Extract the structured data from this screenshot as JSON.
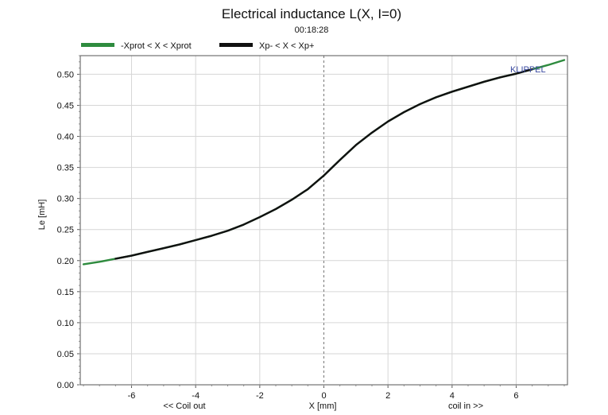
{
  "chart_data": {
    "type": "line",
    "title": "Electrical inductance L(X, I=0)",
    "subtitle": "00:18:28",
    "xlabel": "X [mm]",
    "xlabel_left": "<< Coil out",
    "xlabel_right": "coil in >>",
    "ylabel": "Le [mH]",
    "xlim": [
      -7.6,
      7.6
    ],
    "ylim": [
      0,
      0.53
    ],
    "xticks": [
      -6,
      -4,
      -2,
      0,
      2,
      4,
      6
    ],
    "xtick_labels": [
      "-6",
      "-4",
      "-2",
      "0",
      "2",
      "4",
      "6"
    ],
    "yticks": [
      0,
      0.05,
      0.1,
      0.15,
      0.2,
      0.25,
      0.3,
      0.35,
      0.4,
      0.45,
      0.5
    ],
    "ytick_labels": [
      "0.00",
      "0.05",
      "0.10",
      "0.15",
      "0.20",
      "0.25",
      "0.30",
      "0.35",
      "0.40",
      "0.45",
      "0.50"
    ],
    "grid": true,
    "legend_position": "top-left",
    "watermark": "KLIPPEL",
    "watermark_color": "#3a4aa0",
    "series": [
      {
        "name": "-Xprot < X < Xprot",
        "color": "#2e8b3e",
        "x": [
          -7.5,
          -7.0,
          -6.5,
          -6.0,
          -5.5,
          -5.0,
          -4.5,
          -4.0,
          -3.5,
          -3.0,
          -2.5,
          -2.0,
          -1.5,
          -1.0,
          -0.5,
          0.0,
          0.5,
          1.0,
          1.5,
          2.0,
          2.5,
          3.0,
          3.5,
          4.0,
          4.5,
          5.0,
          5.5,
          6.0,
          6.5,
          7.0,
          7.5
        ],
        "y": [
          0.194,
          0.198,
          0.203,
          0.208,
          0.214,
          0.22,
          0.226,
          0.233,
          0.24,
          0.248,
          0.258,
          0.27,
          0.283,
          0.298,
          0.315,
          0.337,
          0.362,
          0.386,
          0.406,
          0.424,
          0.439,
          0.452,
          0.463,
          0.472,
          0.48,
          0.488,
          0.495,
          0.501,
          0.508,
          0.515,
          0.523
        ]
      },
      {
        "name": "Xp- < X < Xp+",
        "color": "#111111",
        "x": [
          -6.5,
          -6.0,
          -5.5,
          -5.0,
          -4.5,
          -4.0,
          -3.5,
          -3.0,
          -2.5,
          -2.0,
          -1.5,
          -1.0,
          -0.5,
          0.0,
          0.5,
          1.0,
          1.5,
          2.0,
          2.5,
          3.0,
          3.5,
          4.0,
          4.5,
          5.0,
          5.5,
          6.0,
          6.5
        ],
        "y": [
          0.203,
          0.208,
          0.214,
          0.22,
          0.226,
          0.233,
          0.24,
          0.248,
          0.258,
          0.27,
          0.283,
          0.298,
          0.315,
          0.337,
          0.362,
          0.386,
          0.406,
          0.424,
          0.439,
          0.452,
          0.463,
          0.472,
          0.48,
          0.488,
          0.495,
          0.501,
          0.508
        ]
      }
    ]
  }
}
